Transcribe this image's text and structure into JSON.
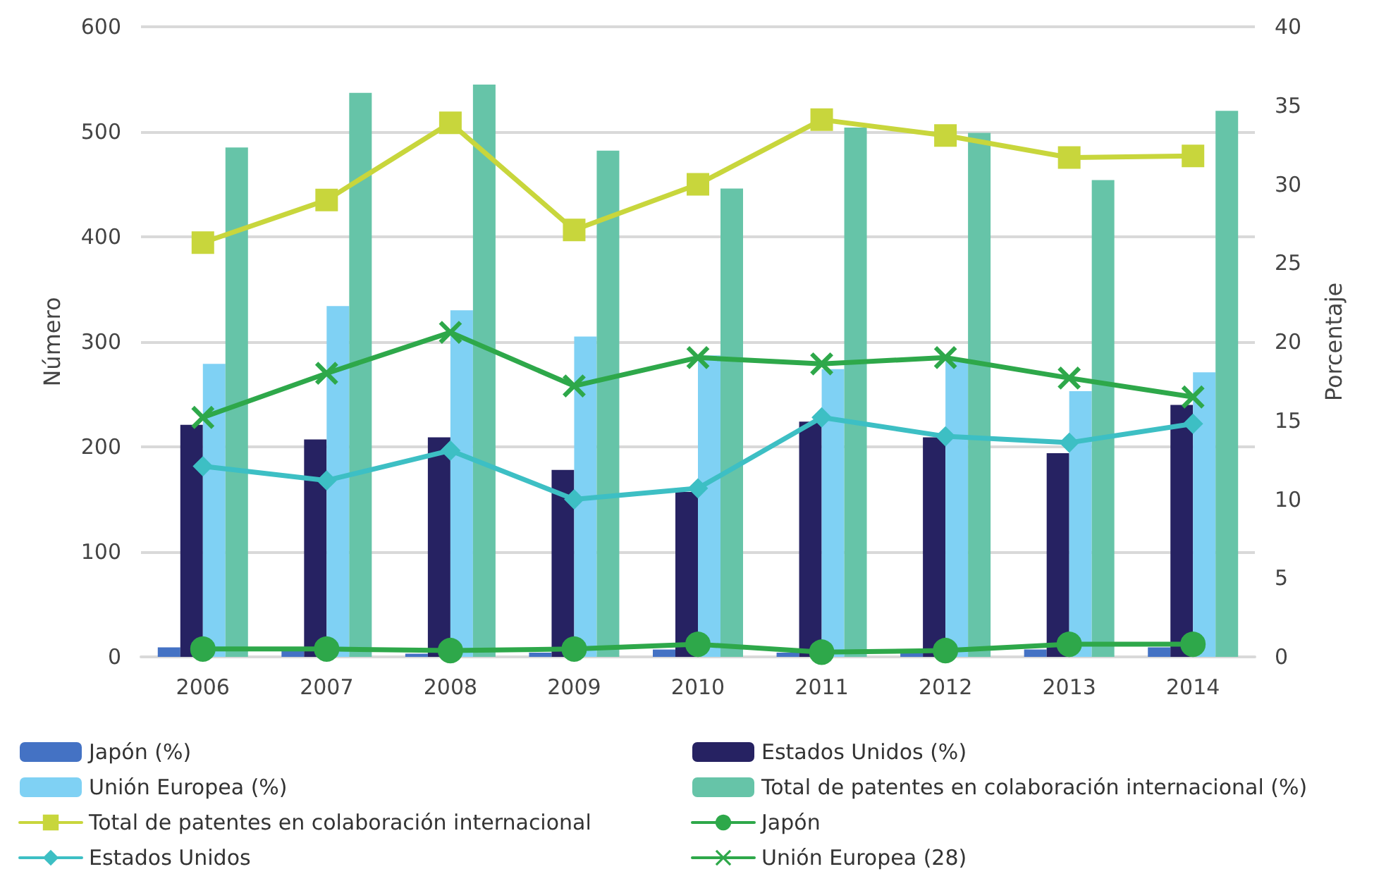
{
  "chart_data": {
    "type": "bar",
    "ylabel": "Número",
    "y2label": "Porcentaje",
    "categories": [
      "2006",
      "2007",
      "2008",
      "2009",
      "2010",
      "2011",
      "2012",
      "2013",
      "2014"
    ],
    "series": [
      {
        "name": "Japón (%)",
        "color": "#4472c4",
        "values": [
          9,
          6,
          3,
          4,
          7,
          4,
          4,
          7,
          9
        ]
      },
      {
        "name": "Estados Unidos (%)",
        "color": "#262262",
        "values": [
          221,
          207,
          209,
          178,
          157,
          224,
          209,
          194,
          240
        ]
      },
      {
        "name": "Unión Europea (%)",
        "color": "#7fd1f4",
        "values": [
          279,
          334,
          330,
          305,
          287,
          274,
          283,
          253,
          271
        ]
      },
      {
        "name": "Total de patentes en colaboración internacional (%)",
        "color": "#66c4a8",
        "values": [
          485,
          537,
          545,
          482,
          446,
          504,
          499,
          454,
          520
        ]
      },
      {
        "name": "Total de patentes en colaboración internacional",
        "type": "line",
        "axis": "y2",
        "marker": "square",
        "color": "#c8d63c",
        "values": [
          26.3,
          29.0,
          33.9,
          27.1,
          30.0,
          34.1,
          33.1,
          31.7,
          31.8
        ]
      },
      {
        "name": "Japón",
        "type": "line",
        "axis": "y2",
        "marker": "circle",
        "color": "#2ea84a",
        "values": [
          0.5,
          0.5,
          0.4,
          0.5,
          0.8,
          0.3,
          0.4,
          0.8,
          0.8
        ]
      },
      {
        "name": "Estados Unidos",
        "type": "line",
        "axis": "y2",
        "marker": "diamond",
        "color": "#3dbfc4",
        "values": [
          12.1,
          11.2,
          13.1,
          10.0,
          10.7,
          15.2,
          14.0,
          13.6,
          14.8
        ]
      },
      {
        "name": "Unión Europea (28)",
        "type": "line",
        "axis": "y2",
        "marker": "cross",
        "color": "#2ea84a",
        "values": [
          15.2,
          18.0,
          20.6,
          17.2,
          19.0,
          18.6,
          19.0,
          17.7,
          16.5
        ]
      }
    ],
    "ylim": [
      0,
      600
    ],
    "yticks": [
      0,
      100,
      200,
      300,
      400,
      500,
      600
    ],
    "y2lim": [
      0,
      40
    ],
    "y2ticks": [
      0,
      5,
      10,
      15,
      20,
      25,
      30,
      35,
      40
    ],
    "grid": "y",
    "legend": "bottom",
    "line_style": "solid"
  }
}
